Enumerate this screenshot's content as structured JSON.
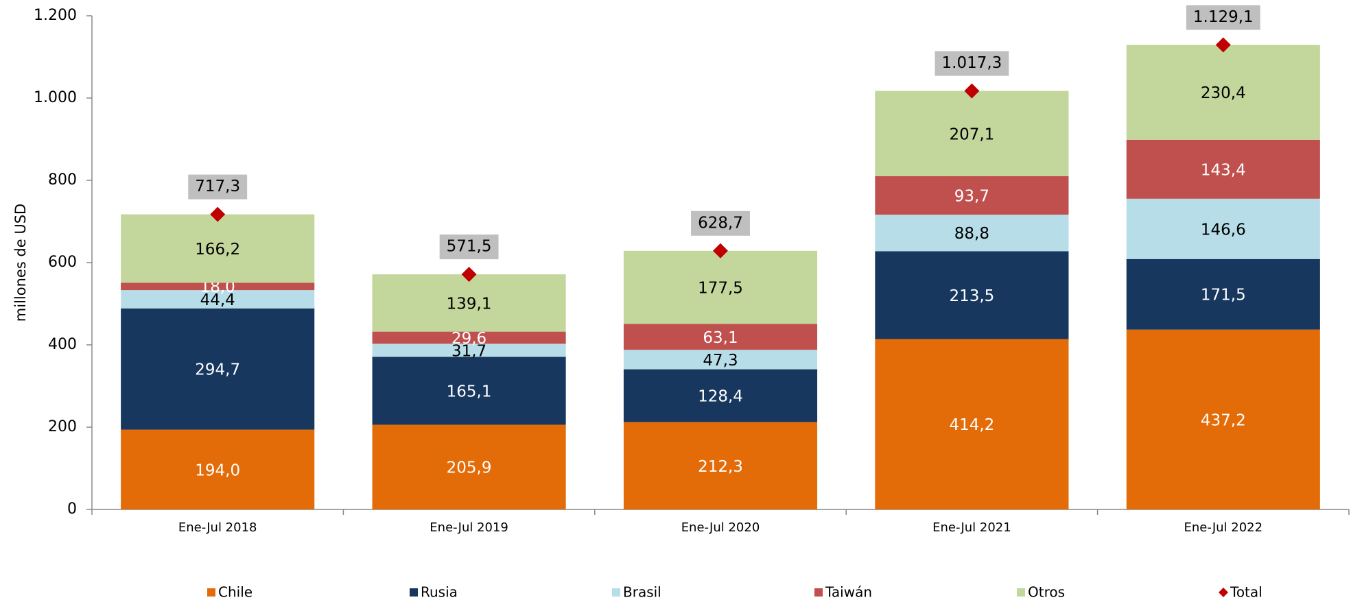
{
  "chart_data": {
    "type": "bar",
    "stacked": true,
    "y_label": "millones de  USD",
    "categories": [
      "Ene-Jul 2018",
      "Ene-Jul 2019",
      "Ene-Jul 2020",
      "Ene-Jul 2021",
      "Ene-Jul 2022"
    ],
    "series": [
      {
        "name": "Chile",
        "color": "#e36c09",
        "label_color": "#ffffff",
        "values": [
          194.0,
          205.9,
          212.3,
          414.2,
          437.2
        ],
        "value_labels": [
          "194,0",
          "205,9",
          "212,3",
          "414,2",
          "437,2"
        ]
      },
      {
        "name": "Rusia",
        "color": "#17375e",
        "label_color": "#ffffff",
        "values": [
          294.7,
          165.1,
          128.4,
          213.5,
          171.5
        ],
        "value_labels": [
          "294,7",
          "165,1",
          "128,4",
          "213,5",
          "171,5"
        ]
      },
      {
        "name": "Brasil",
        "color": "#b7dee8",
        "label_color": "#000000",
        "values": [
          44.4,
          31.7,
          47.3,
          88.8,
          146.6
        ],
        "value_labels": [
          "44,4",
          "31,7",
          "47,3",
          "88,8",
          "146,6"
        ]
      },
      {
        "name": "Taiwán",
        "color": "#c0504d",
        "label_color": "#ffffff",
        "values": [
          18.0,
          29.6,
          63.1,
          93.7,
          143.4
        ],
        "value_labels": [
          "18,0",
          "29,6",
          "63,1",
          "93,7",
          "143,4"
        ]
      },
      {
        "name": "Otros",
        "color": "#c3d69b",
        "label_color": "#000000",
        "values": [
          166.2,
          139.1,
          177.5,
          207.1,
          230.4
        ],
        "value_labels": [
          "166,2",
          "139,1",
          "177,5",
          "207,1",
          "230,4"
        ]
      }
    ],
    "total": {
      "name": "Total",
      "color": "#c00000",
      "marker": "diamond",
      "values": [
        717.3,
        571.5,
        628.7,
        1017.3,
        1129.1
      ],
      "value_labels": [
        "717,3",
        "571,5",
        "628,7",
        "1.017,3",
        "1.129,1"
      ]
    },
    "ylim": [
      0,
      1200
    ],
    "yticks": [
      0,
      200,
      400,
      600,
      800,
      {
        "value": 1000,
        "label": "1.000"
      },
      {
        "value": 1200,
        "label": "1.200"
      }
    ],
    "grid": false,
    "legend": "bottom"
  }
}
